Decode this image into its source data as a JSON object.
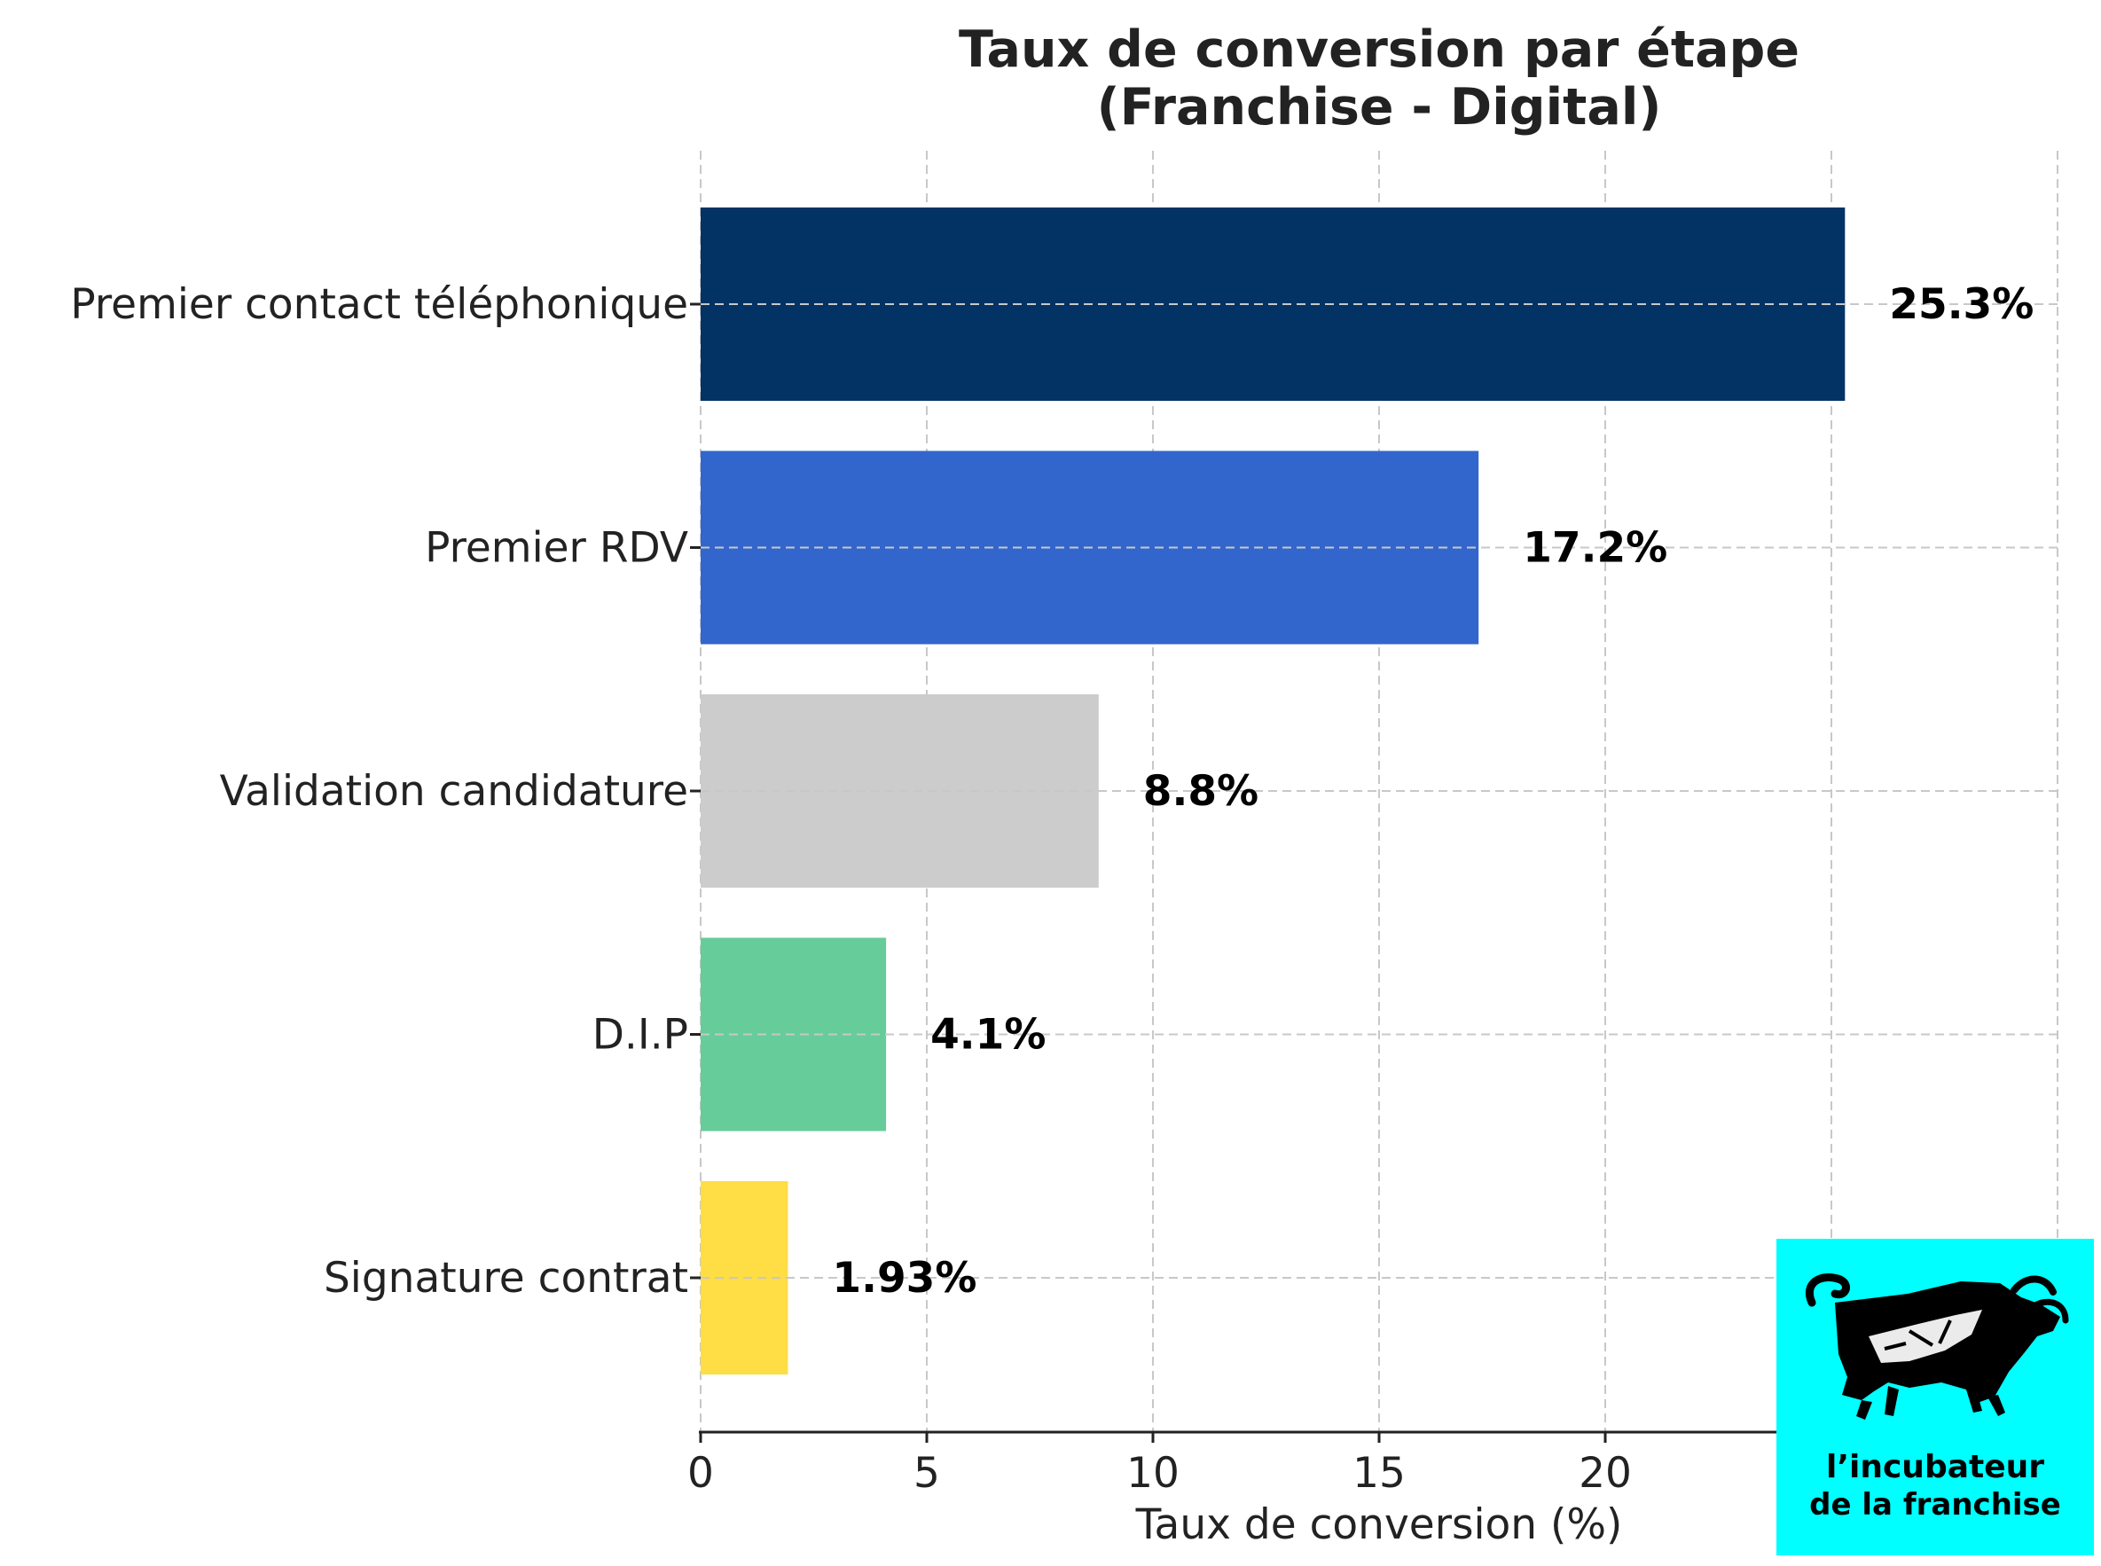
{
  "chart_data": {
    "type": "bar",
    "orientation": "horizontal",
    "title": "Taux de conversion par étape",
    "subtitle": "(Franchise - Digital)",
    "xlabel": "Taux de conversion (%)",
    "ylabel": "",
    "xlim": [
      0,
      30
    ],
    "x_ticks": [
      0,
      5,
      10,
      15,
      20
    ],
    "grid": true,
    "categories": [
      "Premier contact téléphonique",
      "Premier RDV",
      "Validation candidature",
      "D.I.P",
      "Signature contrat"
    ],
    "values": [
      25.3,
      17.2,
      8.8,
      4.1,
      1.93
    ],
    "data_labels": [
      "25.3%",
      "17.2%",
      "8.8%",
      "4.1%",
      "1.93%"
    ],
    "colors": [
      "#033264",
      "#3366cc",
      "#cccccc",
      "#66cc99",
      "#ffdd44"
    ]
  },
  "logo": {
    "line1": "l’incubateur",
    "line2": "de la franchise",
    "background": "#00ffff",
    "icon": "bull-icon"
  }
}
